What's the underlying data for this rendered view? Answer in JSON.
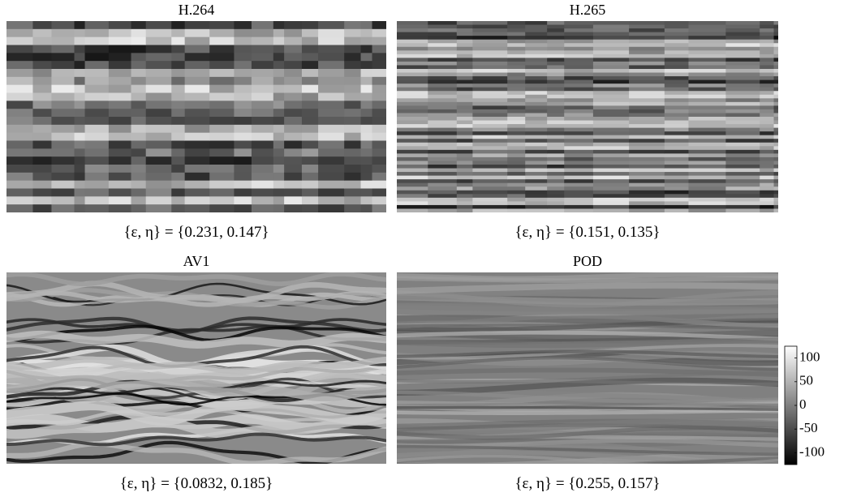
{
  "panels": [
    {
      "title": "H.264",
      "caption": "{ε, η} = {0.231, 0.147}"
    },
    {
      "title": "H.265",
      "caption": "{ε, η} = {0.151, 0.135}"
    },
    {
      "title": "AV1",
      "caption": "{ε, η} = {0.0832, 0.185}"
    },
    {
      "title": "POD",
      "caption": "{ε, η} = {0.255, 0.157}"
    }
  ],
  "colorbar": {
    "lim": [
      -125,
      125
    ],
    "ticks": [
      100,
      50,
      0,
      -50,
      -100
    ]
  }
}
